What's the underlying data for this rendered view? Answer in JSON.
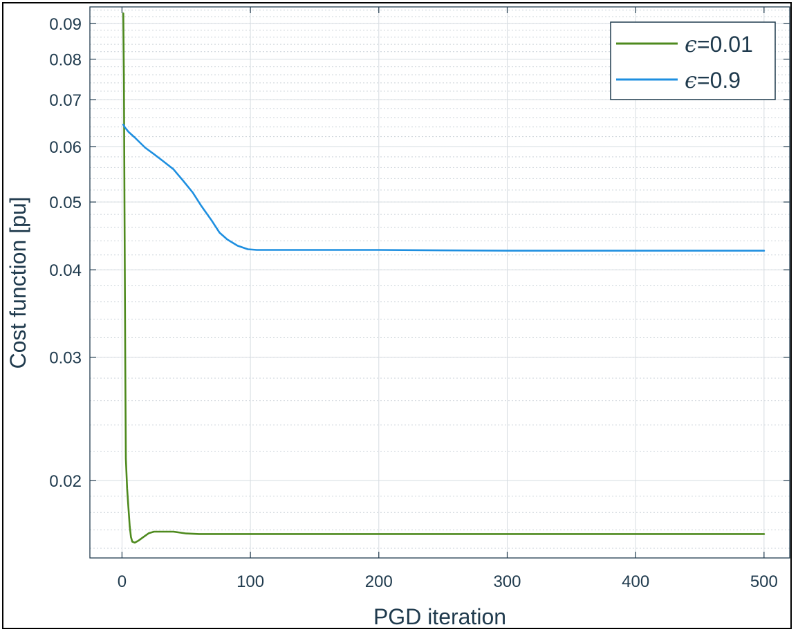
{
  "chart_data": {
    "type": "line",
    "title": "",
    "xlabel": "PGD iteration",
    "ylabel": "Cost function [pu]",
    "xlim": [
      -25,
      520
    ],
    "ylim": [
      0.0155,
      0.095
    ],
    "yscale": "log",
    "grid": true,
    "minor_grid": true,
    "legend_position": "top-right",
    "xticks": [
      0,
      100,
      200,
      300,
      400,
      500
    ],
    "xtick_labels": [
      "0",
      "100",
      "200",
      "300",
      "400",
      "500"
    ],
    "yticks": [
      0.02,
      0.03,
      0.04,
      0.05,
      0.06,
      0.07,
      0.08,
      0.09
    ],
    "ytick_labels": [
      "0.02",
      "0.03",
      "0.04",
      "0.05",
      "0.06",
      "0.07",
      "0.08",
      "0.09"
    ],
    "series": [
      {
        "name_symbol": "ϵ",
        "name_value": "=0.01",
        "color": "#4e8a1e",
        "x": [
          1,
          1.5,
          2,
          2.5,
          3,
          4,
          5,
          6,
          7,
          8,
          10,
          13,
          17,
          21,
          25,
          30,
          40,
          50,
          60,
          80,
          100,
          150,
          200,
          300,
          400,
          500
        ],
        "y": [
          0.093,
          0.075,
          0.048,
          0.03,
          0.0215,
          0.0195,
          0.0183,
          0.0172,
          0.0166,
          0.01635,
          0.0163,
          0.01642,
          0.01662,
          0.01682,
          0.0169,
          0.0169,
          0.0169,
          0.0168,
          0.01677,
          0.01677,
          0.01677,
          0.01677,
          0.01677,
          0.01677,
          0.01677,
          0.01677
        ]
      },
      {
        "name_symbol": "ϵ",
        "name_value": "=0.9",
        "color": "#1e8fe0",
        "x": [
          1,
          2,
          5,
          10,
          18,
          25,
          32,
          40,
          47,
          55,
          62,
          70,
          76,
          82,
          90,
          98,
          105,
          115,
          130,
          150,
          200,
          300,
          400,
          500
        ],
        "y": [
          0.0645,
          0.064,
          0.063,
          0.0618,
          0.0598,
          0.0585,
          0.0572,
          0.0557,
          0.0538,
          0.0516,
          0.0493,
          0.047,
          0.0452,
          0.0442,
          0.0433,
          0.0428,
          0.0427,
          0.0427,
          0.0427,
          0.0427,
          0.0427,
          0.0426,
          0.0426,
          0.0426
        ]
      }
    ]
  }
}
